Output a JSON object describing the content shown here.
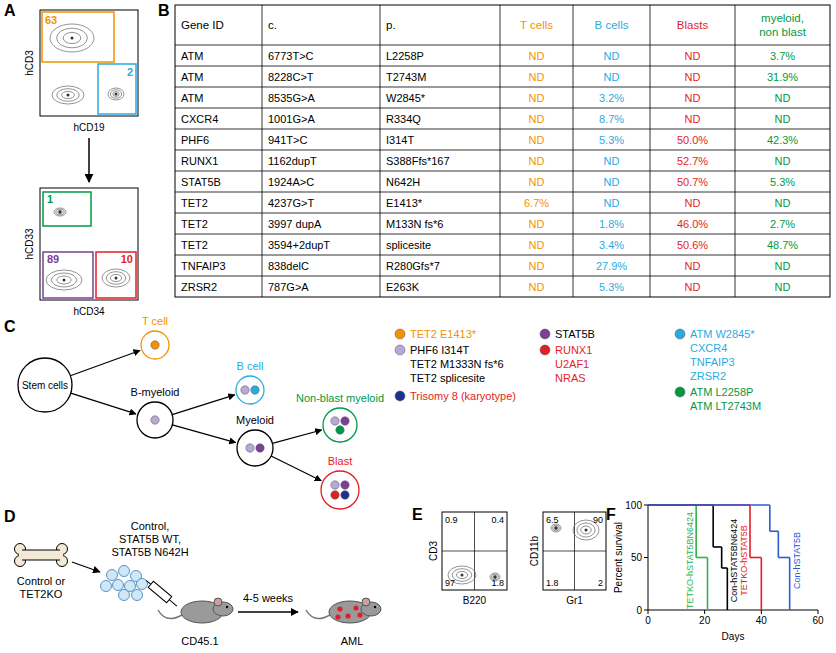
{
  "panel_labels": [
    "A",
    "B",
    "C",
    "D",
    "E",
    "F"
  ],
  "panel_a": {
    "plots": [
      {
        "x_label": "hCD19",
        "y_label": "hCD3",
        "gates": [
          {
            "value": 63,
            "color": "#f39200"
          },
          {
            "value": 2,
            "color": "#29abe2"
          }
        ]
      },
      {
        "x_label": "hCD34",
        "y_label": "hCD33",
        "gates": [
          {
            "value": 1,
            "color": "#009a44"
          },
          {
            "value": 89,
            "color": "#7b3f98"
          },
          {
            "value": 10,
            "color": "#e31e24"
          }
        ]
      }
    ]
  },
  "table": {
    "header": [
      [
        "Gene ID"
      ],
      [
        "c."
      ],
      [
        "p."
      ],
      [
        "T cells"
      ],
      [
        "B cells"
      ],
      [
        "Blasts"
      ],
      [
        "myeloid,",
        "non blast"
      ]
    ],
    "column_colors": [
      "#000000",
      "#000000",
      "#000000",
      "#f39200",
      "#29abe2",
      "#e31e24",
      "#009a44"
    ],
    "rows": [
      [
        "ATM",
        "6773T>C",
        "L2258P",
        "ND",
        "ND",
        "ND",
        "3.7%"
      ],
      [
        "ATM",
        "8228C>T",
        "T2743M",
        "ND",
        "ND",
        "ND",
        "31.9%"
      ],
      [
        "ATM",
        "8535G>A",
        "W2845*",
        "ND",
        "3.2%",
        "ND",
        "ND"
      ],
      [
        "CXCR4",
        "1001G>A",
        "R334Q",
        "ND",
        "8.7%",
        "ND",
        "ND"
      ],
      [
        "PHF6",
        "941T>C",
        "I314T",
        "ND",
        "5.3%",
        "50.0%",
        "42.3%"
      ],
      [
        "RUNX1",
        "1162dupT",
        "S388Ffs*167",
        "ND",
        "ND",
        "52.7%",
        "ND"
      ],
      [
        "STAT5B",
        "1924A>C",
        "N642H",
        "ND",
        "ND",
        "50.7%",
        "5.3%"
      ],
      [
        "TET2",
        "4237G>T",
        "E1413*",
        "6.7%",
        "ND",
        "ND",
        "ND"
      ],
      [
        "TET2",
        "3997 dupA",
        "M133N fs*6",
        "ND",
        "1.8%",
        "46.0%",
        "2.7%"
      ],
      [
        "TET2",
        "3594+2dupT",
        "splicesite",
        "ND",
        "3.4%",
        "50.6%",
        "48.7%"
      ],
      [
        "TNFAIP3",
        "838delC",
        "R280Gfs*7",
        "ND",
        "27.9%",
        "ND",
        "ND"
      ],
      [
        "ZRSR2",
        "787G>A",
        "E263K",
        "ND",
        "5.3%",
        "ND",
        "ND"
      ]
    ]
  },
  "diagram": {
    "nodes": [
      {
        "label": "Stem cells",
        "label_color": "#000000",
        "dots": []
      },
      {
        "label": "T cell",
        "label_color": "#f39200",
        "dots": [
          "#f39200"
        ]
      },
      {
        "label": "B-myeloid",
        "label_color": "#000000",
        "dots": [
          "#b9a7d6"
        ]
      },
      {
        "label": "B cell",
        "label_color": "#29abe2",
        "dots": [
          "#b9a7d6",
          "#29abe2"
        ]
      },
      {
        "label": "Myeloid",
        "label_color": "#000000",
        "dots": [
          "#b9a7d6",
          "#7b3f98"
        ]
      },
      {
        "label": "Non-blast myeloid",
        "label_color": "#009a44",
        "dots": [
          "#b9a7d6",
          "#7b3f98",
          "#009a44"
        ]
      },
      {
        "label": "Blast",
        "label_color": "#e31e24",
        "dots": [
          "#b9a7d6",
          "#7b3f98",
          "#e31e24",
          "#1d2f8f"
        ]
      }
    ],
    "legend": [
      {
        "dot": "#f39200",
        "text_color": "#f39200",
        "lines": [
          "TET2 E1413*"
        ]
      },
      {
        "dot": "#b9a7d6",
        "text_color": "#000000",
        "lines": [
          "PHF6 I314T",
          "TET2 M1333N fs*6",
          "TET2 splicesite"
        ]
      },
      {
        "dot": "#1d2f8f",
        "text_color": "#e31e24",
        "lines": [
          "Trisomy 8 (karyotype)"
        ]
      },
      {
        "dot": "#7b3f98",
        "text_color": "#000000",
        "lines": [
          "STAT5B"
        ]
      },
      {
        "dot": "#e31e24",
        "text_color": "#e31e24",
        "lines": [
          "RUNX1",
          "U2AF1",
          "NRAS"
        ]
      },
      {
        "dot": "#29abe2",
        "text_color": "#29abe2",
        "lines": [
          "ATM W2845*",
          "CXCR4",
          "TNFAIP3",
          "ZRSR2"
        ]
      },
      {
        "dot": "#009a44",
        "text_color": "#009a44",
        "lines": [
          "ATM L2258P",
          "ATM LT2743M"
        ]
      }
    ]
  },
  "panel_d": {
    "bone_label": [
      "Control or",
      "TET2KO"
    ],
    "cell_label": [
      "Control,",
      "STAT5B WT,",
      "STAT5B N642H"
    ],
    "recipient": "CD45.1",
    "time": "4-5 weeks",
    "outcome": "AML"
  },
  "panel_e": {
    "plots": [
      {
        "x_label": "B220",
        "y_label": "CD3",
        "quadrants": {
          "top_left": 0.9,
          "top_right": 0.4,
          "bottom_left": 97,
          "bottom_right": 1.8
        }
      },
      {
        "x_label": "Gr1",
        "y_label": "CD11b",
        "quadrants": {
          "top_left": 6.5,
          "top_right": 90,
          "bottom_left": 1.8,
          "bottom_right": 2
        }
      }
    ]
  },
  "chart_data": {
    "type": "line",
    "line_style": "step",
    "x_label": "Days",
    "y_label": "Percent survival",
    "xlim": [
      0,
      60
    ],
    "ylim": [
      0,
      100
    ],
    "xticks": [
      0,
      20,
      40,
      60
    ],
    "yticks": [
      0,
      50,
      100
    ],
    "series": [
      {
        "name": "TETKO-hSTAT5BN6424",
        "color": "#2db34a",
        "x": [
          0,
          17,
          21
        ],
        "values": [
          100,
          50,
          0
        ]
      },
      {
        "name": "Con-hSTAT5BN6424",
        "color": "#000000",
        "x": [
          0,
          23,
          26,
          28
        ],
        "values": [
          100,
          60,
          40,
          0
        ]
      },
      {
        "name": "TETKO-hSTAT5B",
        "color": "#e31e24",
        "x": [
          0,
          36,
          40
        ],
        "values": [
          100,
          50,
          0
        ]
      },
      {
        "name": "Con-hSTAT5B",
        "color": "#2a5bd7",
        "x": [
          0,
          43,
          46,
          50
        ],
        "values": [
          100,
          75,
          50,
          0
        ]
      }
    ]
  }
}
